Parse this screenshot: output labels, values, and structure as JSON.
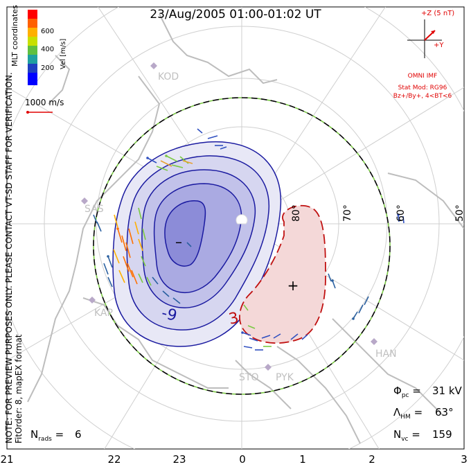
{
  "title": "23/Aug/2005 01:00-01:02 UT",
  "colorbar": {
    "label": "Vel [m/s]",
    "ticks": [
      "600",
      "400",
      "200"
    ],
    "colors": [
      "#ff0000",
      "#ff6000",
      "#ffb000",
      "#c8e000",
      "#60c040",
      "#20a0a0",
      "#2040c0",
      "#0000ff"
    ]
  },
  "coord_system": "MLT coordinates",
  "vector_scale": "1000 m/s",
  "imf": {
    "axis_z": "+Z (5 nT)",
    "axis_y": "+Y",
    "source": "OMNI IMF",
    "model": "Stat Mod: RG96",
    "condition": "Bz+/By+, 4<BT<6"
  },
  "preview_note": "NOTE: FOR PREVIEW PURPOSES ONLY. PLEASE CONTACT VT-SD STAFF FOR VERIFICATION.",
  "fit_note": "FitOrder: 8, mapEX format",
  "latitude_labels": [
    "80°",
    "70°",
    "60°",
    "50°"
  ],
  "mlt_labels": [
    "21",
    "22",
    "23",
    "0",
    "1",
    "2",
    "3"
  ],
  "stations": [
    "KOD",
    "SAS",
    "KAP",
    "STO",
    "PYK",
    "HAN"
  ],
  "contours": {
    "negative_label": "-9",
    "positive_label": "3",
    "min_marker": "–",
    "max_marker": "+"
  },
  "stats": {
    "phi_pc": "31 kV",
    "lambda_hm": "63°",
    "n_vc": "159",
    "n_rads": "6"
  },
  "colors": {
    "negative": "#1a1aa0",
    "positive": "#c01010",
    "boundary": "#7ac943"
  }
}
